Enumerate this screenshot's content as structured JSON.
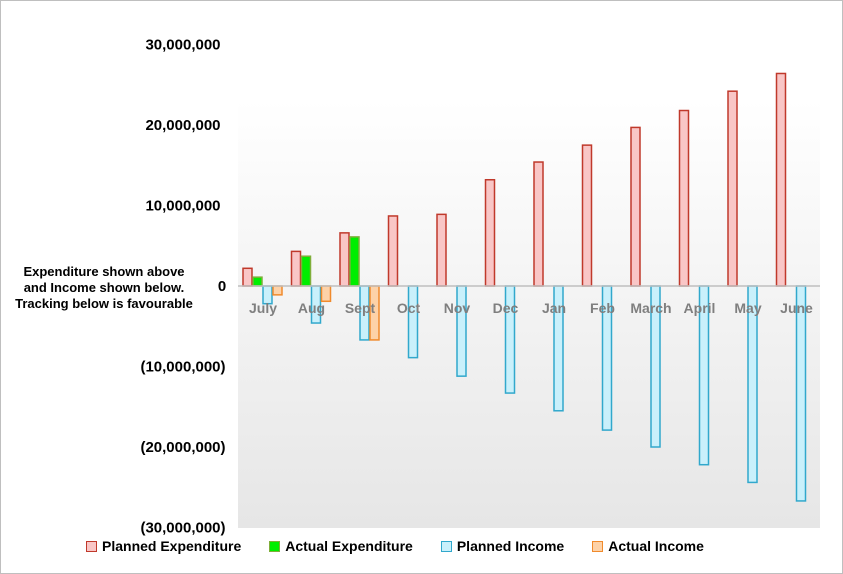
{
  "chart_data": {
    "type": "bar",
    "title": "",
    "xlabel": "",
    "ylabel": "",
    "ylim": [
      -30000000,
      30000000
    ],
    "yticks": [
      30000000,
      20000000,
      10000000,
      0,
      -10000000,
      -20000000,
      -30000000
    ],
    "ytick_labels": [
      "30,000,000",
      "20,000,000",
      "10,000,000",
      "0",
      "(10,000,000)",
      "(20,000,000)",
      "(30,000,000)"
    ],
    "categories": [
      "July",
      "Aug",
      "Sept",
      "Oct",
      "Nov",
      "Dec",
      "Jan",
      "Feb",
      "March",
      "April",
      "May",
      "June"
    ],
    "series": [
      {
        "name": "Planned Expenditure",
        "fill": "#f9c6c6",
        "stroke": "#c0392b",
        "values": [
          2200000,
          4300000,
          6600000,
          8700000,
          8900000,
          13200000,
          15400000,
          17500000,
          19700000,
          21800000,
          24200000,
          26400000
        ]
      },
      {
        "name": "Actual Expenditure",
        "fill": "#00ee00",
        "stroke": "#7fae3a",
        "values": [
          1100000,
          3700000,
          6100000,
          null,
          null,
          null,
          null,
          null,
          null,
          null,
          null,
          null
        ]
      },
      {
        "name": "Planned Income",
        "fill": "#c9f0fb",
        "stroke": "#31a8cc",
        "values": [
          -2200000,
          -4600000,
          -6700000,
          -8900000,
          -11200000,
          -13300000,
          -15500000,
          -17900000,
          -20000000,
          -22200000,
          -24400000,
          -26700000
        ]
      },
      {
        "name": "Actual Income",
        "fill": "#fdd2a8",
        "stroke": "#f08a2c",
        "values": [
          -1100000,
          -1900000,
          -6700000,
          null,
          null,
          null,
          null,
          null,
          null,
          null,
          null,
          null
        ]
      }
    ],
    "legend_position": "bottom",
    "annotation": [
      "Expenditure  shown above",
      "and  Income shown below.",
      "Tracking  below is favourable"
    ]
  }
}
